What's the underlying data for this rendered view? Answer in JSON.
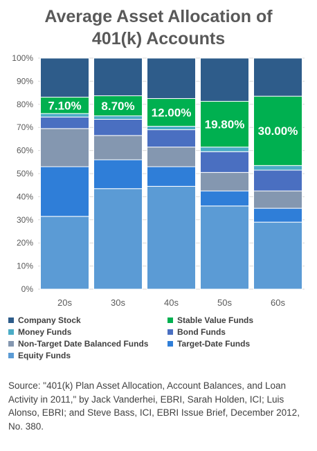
{
  "chart_data": {
    "type": "bar",
    "stacked": true,
    "normalized": true,
    "title": "Average Asset Allocation of 401(k) Accounts",
    "title_lines": [
      "Average Asset Allocation of",
      "401(k) Accounts"
    ],
    "categories": [
      "20s",
      "30s",
      "40s",
      "50s",
      "60s"
    ],
    "ylim": [
      0,
      100
    ],
    "yticks": [
      "0%",
      "10%",
      "20%",
      "30%",
      "40%",
      "50%",
      "60%",
      "70%",
      "80%",
      "90%",
      "100%"
    ],
    "grid": true,
    "legend_position": "bottom",
    "series": [
      {
        "name": "Equity Funds",
        "color": "#5b9bd5",
        "values": [
          31.5,
          43.5,
          44.5,
          36,
          29
        ]
      },
      {
        "name": "Target-Date Funds",
        "color": "#2f7ed8",
        "values": [
          21.5,
          12.5,
          8.5,
          6.5,
          6
        ]
      },
      {
        "name": "Non-Target Date Balanced Funds",
        "color": "#8497b0",
        "values": [
          16.5,
          10.5,
          8.5,
          8,
          7.5
        ]
      },
      {
        "name": "Bond Funds",
        "color": "#4a6fc1",
        "values": [
          5,
          7,
          7.5,
          9,
          9
        ]
      },
      {
        "name": "Money Funds",
        "color": "#4bacc6",
        "values": [
          1.5,
          1.5,
          1.5,
          2,
          2
        ]
      },
      {
        "name": "Stable Value Funds",
        "color": "#00b050",
        "values": [
          7.1,
          8.7,
          12.0,
          19.8,
          30.0
        ],
        "labels": [
          "7.10%",
          "8.70%",
          "12.00%",
          "19.80%",
          "30.00%"
        ]
      },
      {
        "name": "Company Stock",
        "color": "#2e5c8a",
        "values": [
          16.9,
          16.3,
          17.5,
          18.7,
          16.5
        ]
      }
    ],
    "legend_order": [
      "Company Stock",
      "Stable Value Funds",
      "Money Funds",
      "Bond Funds",
      "Non-Target Date Balanced Funds",
      "Target-Date Funds",
      "Equity Funds"
    ]
  },
  "source": "Source:  \"401(k) Plan Asset Allocation, Account Balances, and Loan Activity in 2011,\" by Jack Vanderhei, EBRI, Sarah Holden, ICI; Luis Alonso, EBRI; and Steve Bass, ICI, EBRI Issue Brief, December 2012, No. 380."
}
